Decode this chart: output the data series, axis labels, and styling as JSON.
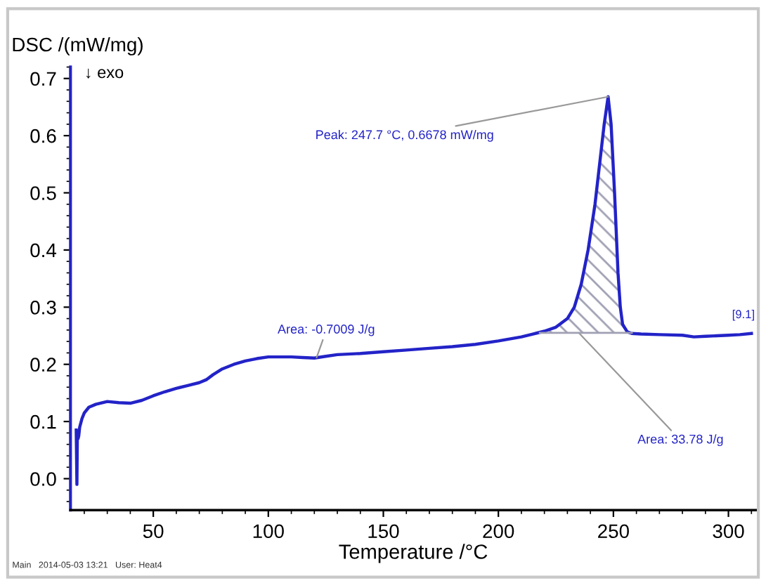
{
  "chart_data": {
    "type": "line",
    "xlabel": "Temperature /°C",
    "ylabel": "DSC /(mW/mg)",
    "xlim": [
      14,
      312
    ],
    "ylim": [
      -0.055,
      0.72
    ],
    "xticks": [
      50,
      100,
      150,
      200,
      250,
      300
    ],
    "yticks": [
      {
        "value": 0,
        "label": "0.0"
      },
      0.1,
      0.2,
      0.3,
      0.4,
      0.5,
      0.6,
      0.7
    ],
    "grid": false,
    "marker": "none",
    "line_style": "solid",
    "series": [
      {
        "color": "#2323c8",
        "x": [
          16.5,
          16.8,
          17.0,
          17.3,
          17.6,
          18.0,
          19,
          20,
          22,
          25,
          30,
          35,
          40,
          45,
          50,
          55,
          60,
          65,
          70,
          73,
          76,
          80,
          85,
          90,
          95,
          100,
          105,
          110,
          115,
          120,
          125,
          130,
          140,
          150,
          160,
          170,
          180,
          190,
          200,
          210,
          215,
          220,
          225,
          230,
          233,
          236,
          239,
          242,
          244,
          246,
          247.7,
          249,
          250.5,
          252,
          253,
          254,
          256,
          258,
          262,
          270,
          280,
          285,
          290,
          295,
          300,
          305,
          310
        ],
        "values": [
          0.085,
          -0.01,
          0.08,
          0.07,
          0.075,
          0.09,
          0.105,
          0.115,
          0.125,
          0.13,
          0.135,
          0.133,
          0.132,
          0.137,
          0.145,
          0.152,
          0.158,
          0.163,
          0.168,
          0.173,
          0.182,
          0.192,
          0.2,
          0.206,
          0.21,
          0.213,
          0.213,
          0.213,
          0.212,
          0.211,
          0.214,
          0.217,
          0.219,
          0.222,
          0.225,
          0.228,
          0.231,
          0.235,
          0.241,
          0.248,
          0.253,
          0.258,
          0.265,
          0.28,
          0.3,
          0.34,
          0.4,
          0.48,
          0.55,
          0.62,
          0.668,
          0.62,
          0.5,
          0.36,
          0.3,
          0.27,
          0.257,
          0.254,
          0.253,
          0.252,
          0.251,
          0.248,
          0.249,
          0.25,
          0.251,
          0.252,
          0.254
        ]
      },
      {
        "color": "#a0a0b4",
        "x": [
          218,
          228,
          238,
          248,
          258
        ],
        "values": [
          0.255,
          0.255,
          0.255,
          0.255,
          0.255
        ]
      },
      {
        "type": "area",
        "color": "#a0a0b4",
        "x": [
          218,
          222,
          225,
          230,
          233,
          236,
          239,
          242,
          244,
          246,
          247.7,
          249,
          250.5,
          252,
          253,
          254,
          256,
          258
        ],
        "values": [
          0.256,
          0.261,
          0.265,
          0.28,
          0.3,
          0.34,
          0.4,
          0.48,
          0.55,
          0.62,
          0.668,
          0.62,
          0.5,
          0.36,
          0.3,
          0.27,
          0.257,
          0.255
        ]
      }
    ],
    "annotations": [
      "↓ exo",
      {
        "text": "Peak: 247.7 °C, 0.6678 mW/mg",
        "x": 247.7,
        "y": 0.668
      },
      {
        "text": "Area: -0.7009 J/g",
        "x": 121,
        "y": 0.212
      },
      {
        "text": "Area: 33.78 J/g",
        "x": 235,
        "y": 0.255
      },
      "[9.1]",
      "Main   2014-05-03 13:21   User: Heat4"
    ]
  }
}
